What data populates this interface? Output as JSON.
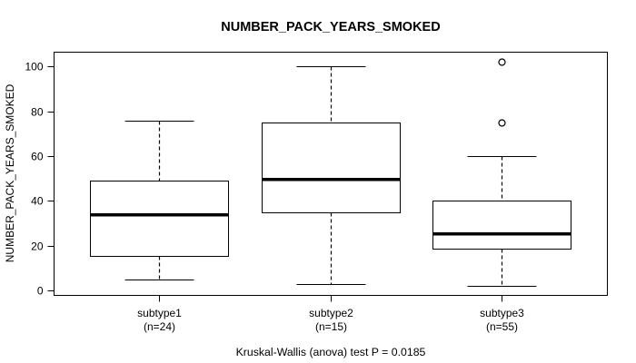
{
  "title": "NUMBER_PACK_YEARS_SMOKED",
  "y_axis": {
    "label": "NUMBER_PACK_YEARS_SMOKED"
  },
  "footer": "Kruskal-Wallis (anova) test P = 0.0185",
  "colors": {
    "line": "#000000",
    "background": "#ffffff",
    "box_fill": "#ffffff"
  },
  "chart_data": {
    "type": "boxplot",
    "title": "NUMBER_PACK_YEARS_SMOKED",
    "xlabel": "",
    "ylabel": "NUMBER_PACK_YEARS_SMOKED",
    "ylim": [
      -2,
      106.5
    ],
    "yticks": [
      0,
      20,
      40,
      60,
      80,
      100
    ],
    "grid": false,
    "legend": "none",
    "annotation": "Kruskal-Wallis (anova) test P = 0.0185",
    "groups": [
      {
        "label": "subtype1",
        "sublabel": "(n=24)",
        "n": 24,
        "whisker_low": 5,
        "q1": 15.5,
        "median": 34,
        "q3": 49,
        "whisker_high": 76,
        "outliers": []
      },
      {
        "label": "subtype2",
        "sublabel": "(n=15)",
        "n": 15,
        "whisker_low": 3,
        "q1": 35,
        "median": 50,
        "q3": 75,
        "whisker_high": 100,
        "outliers": []
      },
      {
        "label": "subtype3",
        "sublabel": "(n=55)",
        "n": 55,
        "whisker_low": 2,
        "q1": 18.5,
        "median": 25.5,
        "q3": 40,
        "whisker_high": 60,
        "outliers": [
          75,
          102
        ]
      }
    ]
  }
}
